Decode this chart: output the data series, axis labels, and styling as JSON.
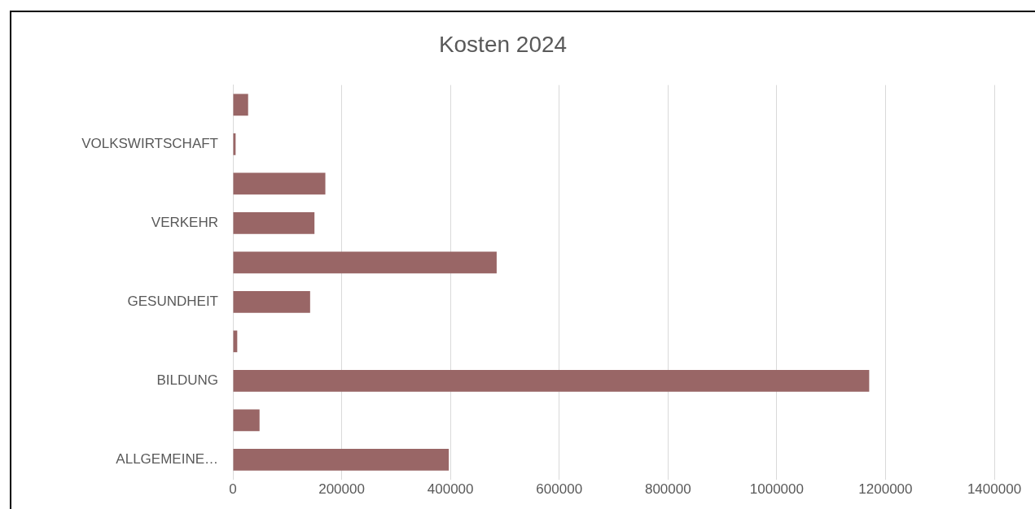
{
  "chart_data": {
    "type": "bar",
    "orientation": "horizontal",
    "title": "Kosten 2024",
    "categories": [
      null,
      "VOLKSWIRTSCHAFT",
      null,
      "VERKEHR",
      null,
      "GESUNDHEIT",
      null,
      "BILDUNG",
      null,
      "ALLGEMEINE…"
    ],
    "values": [
      28000,
      5000,
      170000,
      150000,
      485000,
      142000,
      8000,
      1170000,
      49000,
      397000
    ],
    "color": "#996666",
    "xlim": [
      0,
      1400000
    ],
    "xticks": [
      0,
      200000,
      400000,
      600000,
      800000,
      1000000,
      1200000,
      1400000
    ],
    "grid": "x"
  }
}
